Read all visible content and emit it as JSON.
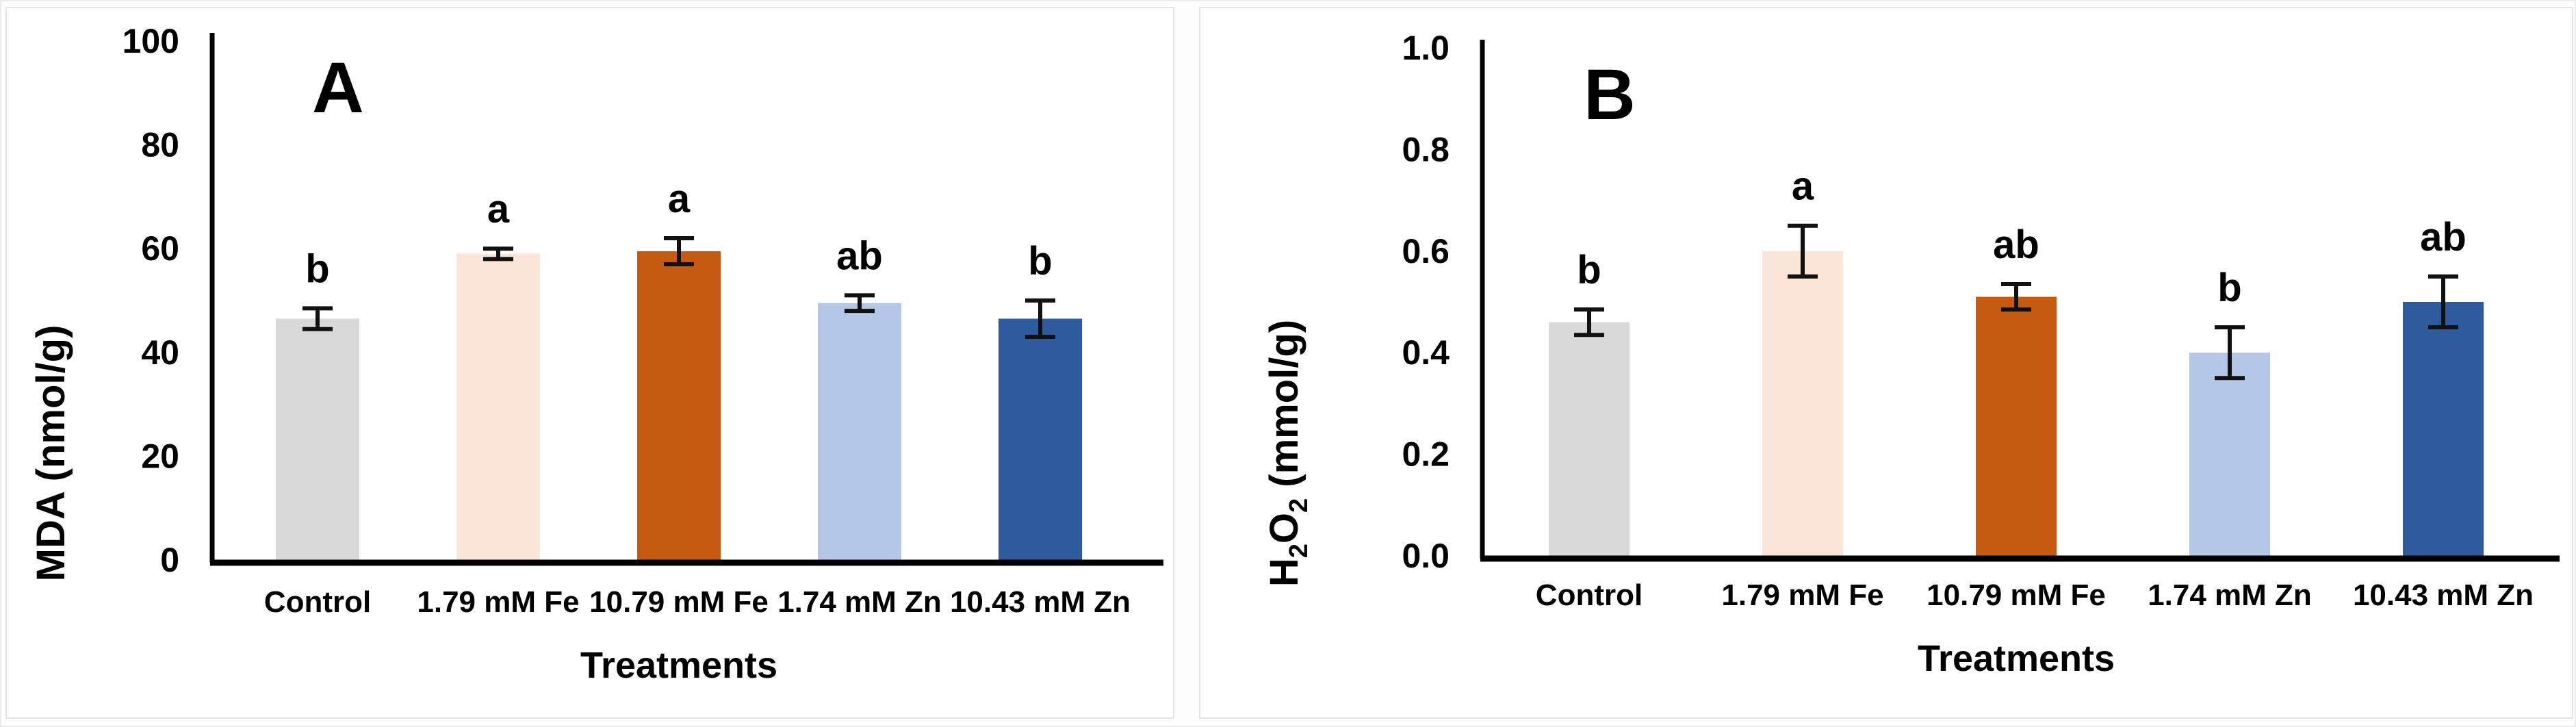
{
  "chart_data": [
    {
      "type": "bar",
      "panel_letter": "A",
      "ylabel_text": "MDA (nmol/g)",
      "ylabel_segments": [
        {
          "t": "MDA (nmol/g)",
          "sub": false
        }
      ],
      "xlabel": "Treatments",
      "categories": [
        "Control",
        "1.79 mM Fe",
        "10.79 mM Fe",
        "1.74 mM Zn",
        "10.43 mM Zn"
      ],
      "values": [
        46.5,
        59,
        59.5,
        49.5,
        46.5
      ],
      "errors": [
        2,
        1,
        2.5,
        1.5,
        3.5
      ],
      "sig_letters": [
        "b",
        "a",
        "a",
        "ab",
        "b"
      ],
      "bar_colors": [
        "#d9d9d9",
        "#fbe5d6",
        "#c55a11",
        "#b4c7e7",
        "#2e5b9e"
      ],
      "ylim": [
        0,
        100
      ],
      "ytick_values": [
        0,
        20,
        40,
        60,
        80,
        100
      ],
      "yticks": [
        "0",
        "20",
        "40",
        "60",
        "80",
        "100"
      ],
      "grid": false,
      "legend": null
    },
    {
      "type": "bar",
      "panel_letter": "B",
      "ylabel_text": "H2O2 (mmol/g)",
      "ylabel_segments": [
        {
          "t": "H",
          "sub": false
        },
        {
          "t": "2",
          "sub": true
        },
        {
          "t": "O",
          "sub": false
        },
        {
          "t": "2",
          "sub": true
        },
        {
          "t": " (mmol/g)",
          "sub": false
        }
      ],
      "xlabel": "Treatments",
      "categories": [
        "Control",
        "1.79 mM Fe",
        "10.79 mM Fe",
        "1.74 mM Zn",
        "10.43 mM Zn"
      ],
      "values": [
        0.46,
        0.6,
        0.51,
        0.4,
        0.5
      ],
      "errors": [
        0.025,
        0.05,
        0.025,
        0.05,
        0.05
      ],
      "sig_letters": [
        "b",
        "a",
        "ab",
        "b",
        "ab"
      ],
      "bar_colors": [
        "#d9d9d9",
        "#fbe5d6",
        "#c55a11",
        "#b4c7e7",
        "#2e5b9e"
      ],
      "ylim": [
        0,
        1.0
      ],
      "ytick_values": [
        0,
        0.2,
        0.4,
        0.6,
        0.8,
        1.0
      ],
      "yticks": [
        "0.0",
        "0.2",
        "0.4",
        "0.6",
        "0.8",
        "1.0"
      ],
      "grid": false,
      "legend": null
    }
  ],
  "colors": {
    "axis": "#000000",
    "error_bar": "#111111",
    "text": "#000000",
    "panel_border": "#e4e4e4",
    "panel_bg": "#ffffff"
  }
}
